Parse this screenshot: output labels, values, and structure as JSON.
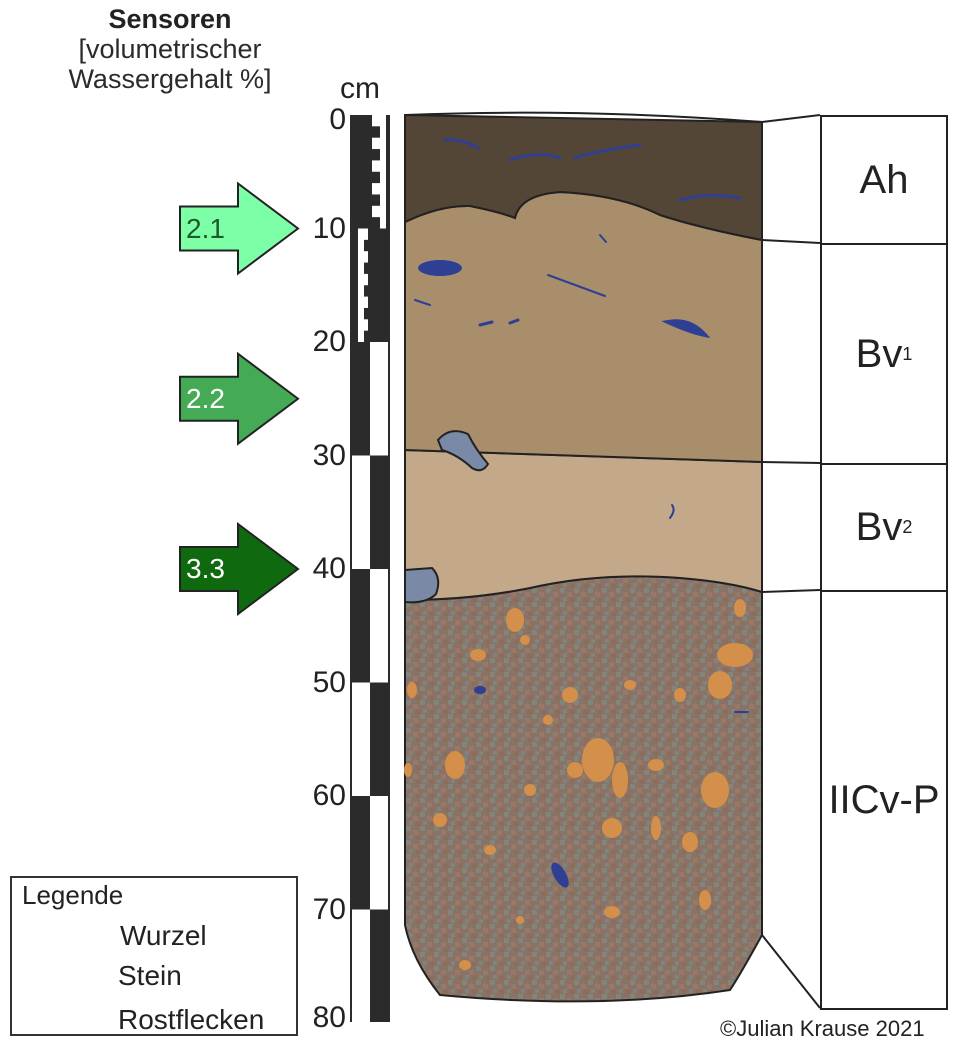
{
  "header": {
    "title": "Sensoren",
    "subtitle_line1": "[volumetrischer",
    "subtitle_line2": "Wassergehalt %]"
  },
  "scale": {
    "unit": "cm",
    "ticks": [
      "0",
      "10",
      "20",
      "30",
      "40",
      "50",
      "60",
      "70",
      "80"
    ]
  },
  "sensors": [
    {
      "label": "2.1",
      "depth_cm": 10,
      "color": "#7dffa8"
    },
    {
      "label": "2.2",
      "depth_cm": 25,
      "color": "#45aa55"
    },
    {
      "label": "3.3",
      "depth_cm": 40,
      "color": "#0f6a0f"
    }
  ],
  "horizons": [
    {
      "name": "Ah",
      "sub": "",
      "top_cm": 0,
      "bottom_cm": 11
    },
    {
      "name": "Bv",
      "sub": "1",
      "top_cm": 11,
      "bottom_cm": 30
    },
    {
      "name": "Bv",
      "sub": "2",
      "top_cm": 30,
      "bottom_cm": 41
    },
    {
      "name": "IICv-P",
      "sub": "",
      "top_cm": 41,
      "bottom_cm": 80
    }
  ],
  "soil_colors": {
    "Ah": "#544636",
    "Bv1": "#a88e6b",
    "Bv2": "#c3a98a",
    "IICv-P": "#8a7366",
    "root": "#2e3f94",
    "stone": "#7a8aa6",
    "rust": "#d4904a"
  },
  "legend": {
    "title": "Legende",
    "items": [
      {
        "label": "Wurzel",
        "icon": "root-icon"
      },
      {
        "label": "Stein",
        "icon": "stone-icon"
      },
      {
        "label": "Rostflecken",
        "icon": "rust-spot-icon"
      }
    ]
  },
  "copyright": "©Julian Krause 2021"
}
